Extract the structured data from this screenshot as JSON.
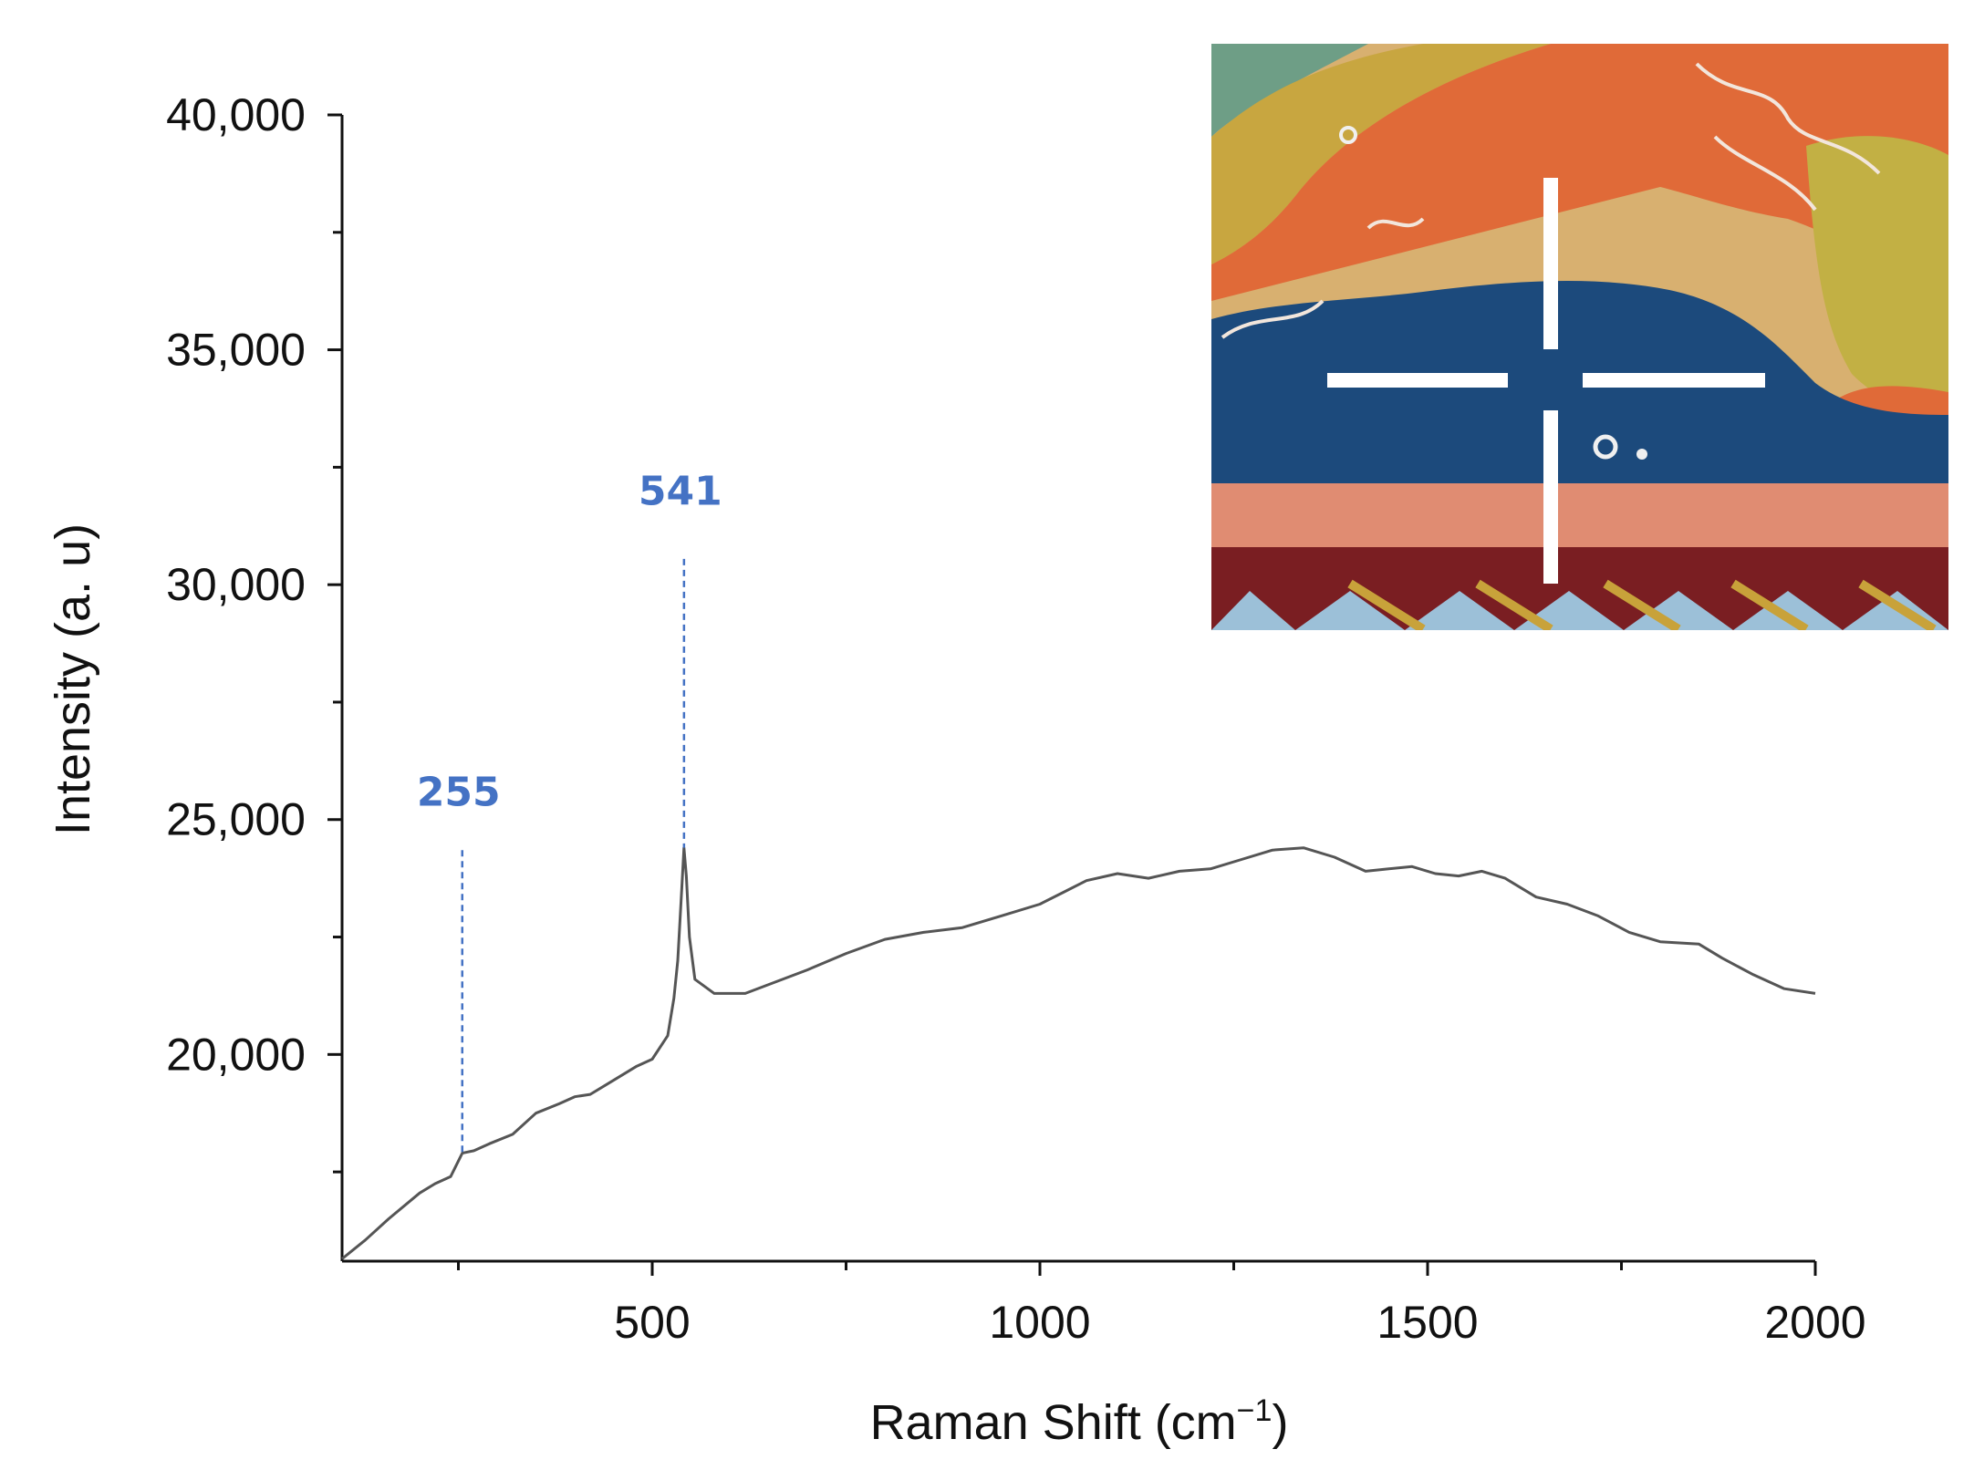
{
  "chart_data": {
    "type": "line",
    "title": "",
    "xlabel": "Raman Shift (cm",
    "xlabel_sup": "−1",
    "xlabel_close": ")",
    "ylabel": "Intensity (a. u)",
    "xlim": [
      100,
      2000
    ],
    "ylim": [
      15600,
      40000
    ],
    "x_major_ticks": [
      500,
      1000,
      1500,
      2000
    ],
    "x_minor_ticks": [
      250,
      750,
      1250,
      1750
    ],
    "x_tick_labels": [
      "500",
      "1000",
      "1500",
      "2000"
    ],
    "y_major_ticks": [
      20000,
      25000,
      30000,
      35000,
      40000
    ],
    "y_minor_ticks": [
      17500,
      22500,
      27500,
      32500,
      37500
    ],
    "y_tick_labels": [
      "20,000",
      "25,000",
      "30,000",
      "35,000",
      "40,000"
    ],
    "grid": false,
    "line_color": "#555555",
    "annotation_color": "#4472c4",
    "series": [
      {
        "x": [
          100,
          130,
          160,
          200,
          220,
          240,
          255,
          270,
          290,
          320,
          350,
          380,
          400,
          420,
          450,
          480,
          500,
          520,
          528,
          533,
          538,
          541,
          544,
          548,
          555,
          580,
          620,
          660,
          700,
          750,
          800,
          850,
          900,
          950,
          1000,
          1030,
          1060,
          1100,
          1140,
          1180,
          1220,
          1260,
          1300,
          1340,
          1380,
          1420,
          1450,
          1480,
          1510,
          1540,
          1570,
          1600,
          1640,
          1680,
          1720,
          1760,
          1800,
          1850,
          1880,
          1920,
          1960,
          2000
        ],
        "y": [
          15650,
          16050,
          16500,
          17050,
          17250,
          17400,
          17900,
          17950,
          18100,
          18300,
          18750,
          18950,
          19100,
          19150,
          19450,
          19750,
          19900,
          20400,
          21200,
          22000,
          23500,
          24400,
          23800,
          22500,
          21600,
          21300,
          21300,
          21550,
          21800,
          22150,
          22450,
          22600,
          22700,
          22950,
          23200,
          23450,
          23700,
          23850,
          23750,
          23900,
          23950,
          24150,
          24350,
          24400,
          24200,
          23900,
          23950,
          24000,
          23850,
          23800,
          23900,
          23750,
          23350,
          23200,
          22950,
          22600,
          22400,
          22350,
          22050,
          21700,
          21400,
          21300
        ]
      }
    ],
    "annotations": [
      {
        "label": "255",
        "x": 255,
        "y_line_top": 24350,
        "y_line_bottom": 17900,
        "y_text": 25300
      },
      {
        "label": "541",
        "x": 541,
        "y_line_top": 30550,
        "y_line_bottom": 24400,
        "y_text": 31700
      }
    ]
  },
  "inset": {
    "image": "painted-mural-detail-with-crosshair",
    "colors": {
      "orange": "#e06a38",
      "blue": "#1c4a7c",
      "ochre": "#c8a640",
      "green": "#6e9e86",
      "salmon": "#e08c72",
      "maroon": "#7a1e22",
      "pale_blue": "#9cc0d8",
      "gold": "#c8a23a"
    }
  }
}
